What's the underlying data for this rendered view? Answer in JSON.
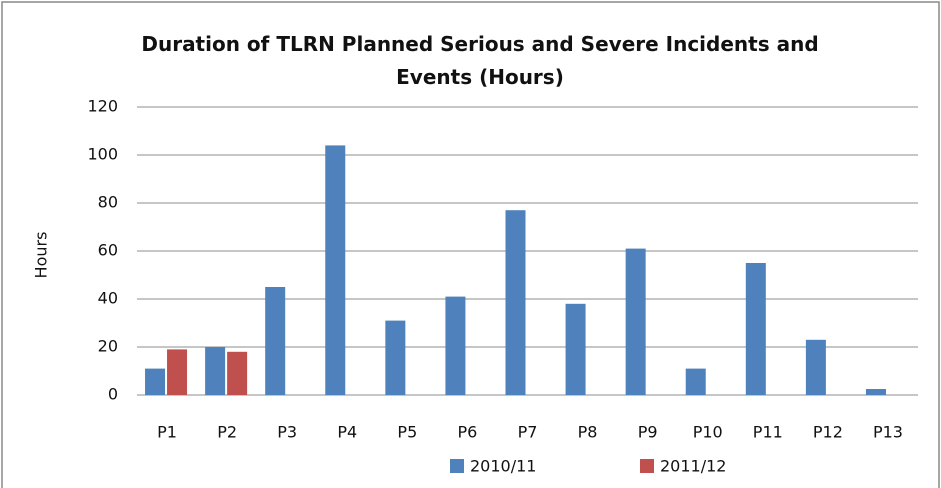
{
  "chart_data": {
    "type": "bar",
    "title": "Duration of TLRN Planned Serious and Severe Incidents and Events (Hours)",
    "y_label": "Hours",
    "categories": [
      "P1",
      "P2",
      "P3",
      "P4",
      "P5",
      "P6",
      "P7",
      "P8",
      "P9",
      "P10",
      "P11",
      "P12",
      "P13"
    ],
    "series": [
      {
        "name": "2010/11",
        "color": "#4f81bd",
        "values": [
          11,
          20,
          45,
          104,
          31,
          41,
          77,
          38,
          61,
          11,
          55,
          23,
          2.5
        ]
      },
      {
        "name": "2011/12",
        "color": "#c0504d",
        "values": [
          19,
          18,
          null,
          null,
          null,
          null,
          null,
          null,
          null,
          null,
          null,
          null,
          null
        ]
      }
    ],
    "ylim": [
      0,
      120
    ],
    "yticks": [
      0,
      20,
      40,
      60,
      80,
      100,
      120
    ],
    "grid": true,
    "legend": "bottom"
  }
}
